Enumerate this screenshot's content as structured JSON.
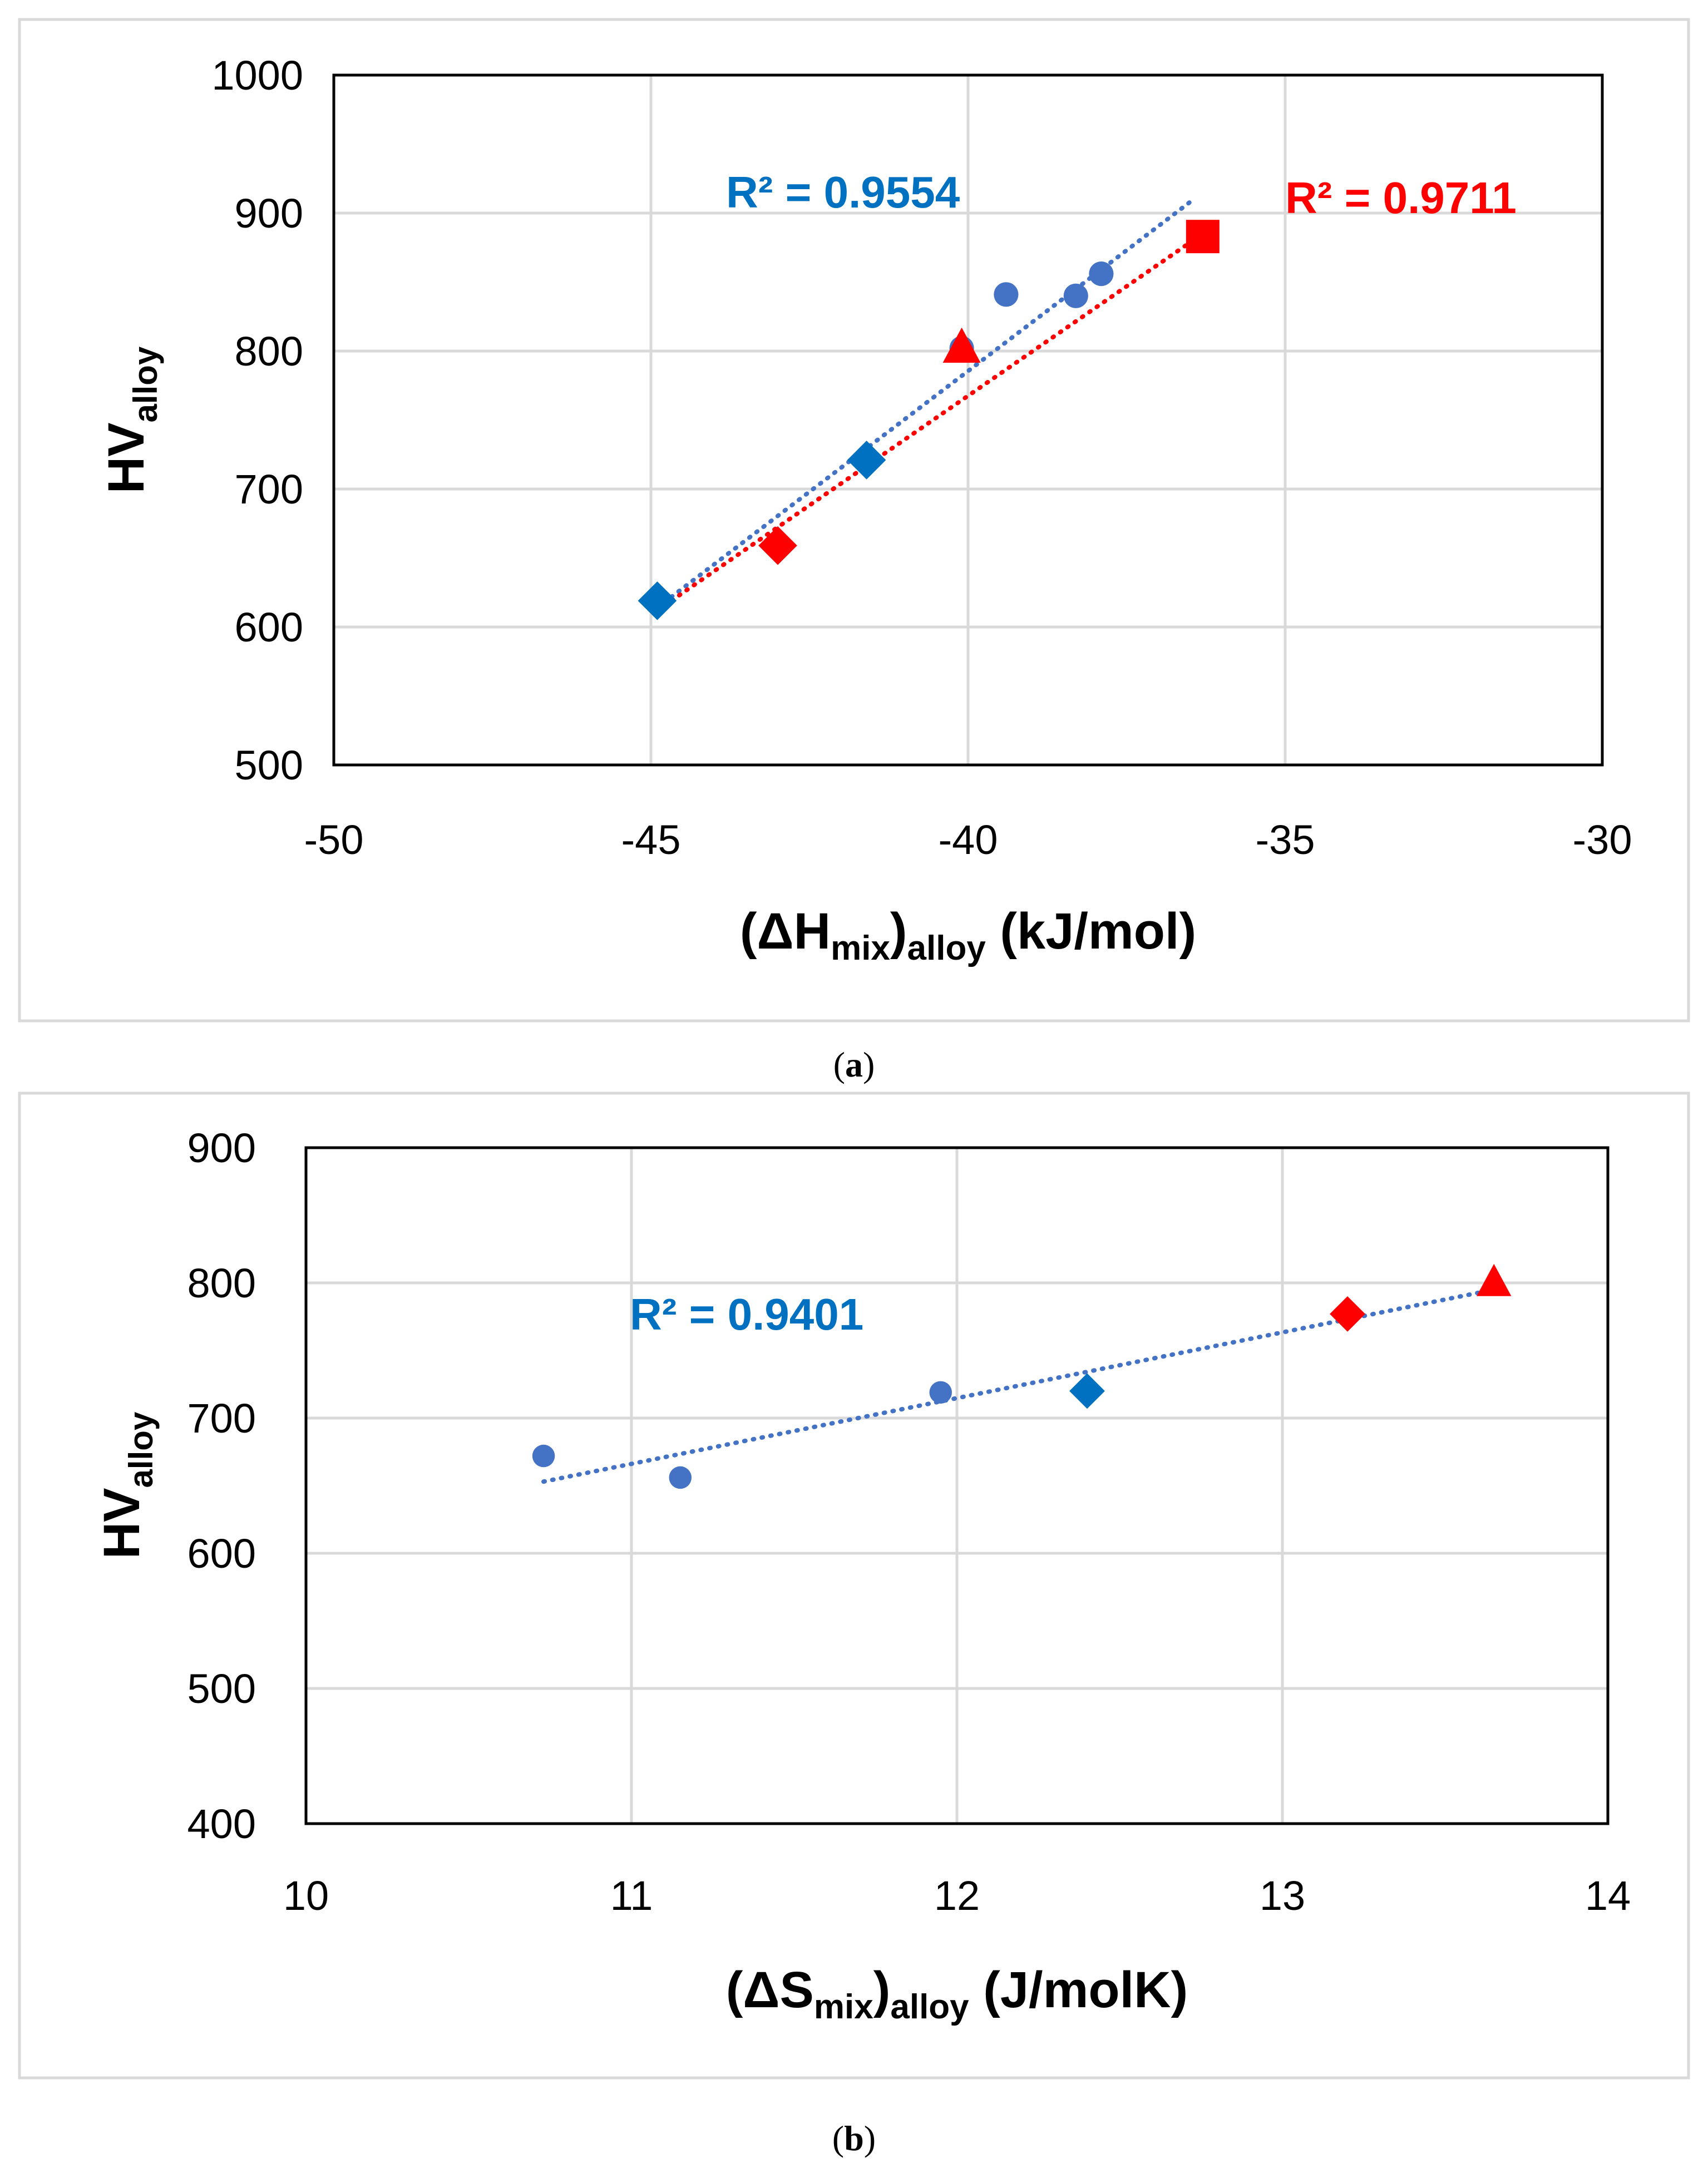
{
  "colors": {
    "blue_series": "#4472C4",
    "blue_marker": "#0070C0",
    "red": "#FF0000",
    "grid": "#D9D9D9",
    "frame": "#D9D9D9"
  },
  "chart_data": [
    {
      "id": "a",
      "type": "scatter",
      "caption": {
        "open": "(",
        "letter": "a",
        "close": ")"
      },
      "title": "",
      "xlabel": {
        "open": "(ΔH",
        "sub1": "mix",
        "mid": ")",
        "sub2": "alloy",
        "tail": " (kJ/mol)"
      },
      "ylabel": {
        "main": "HV",
        "sub": "alloy"
      },
      "xlim": [
        -50,
        -30
      ],
      "ylim": [
        500,
        1000
      ],
      "xticks": [
        -50,
        -45,
        -40,
        -35,
        -30
      ],
      "yticks": [
        500,
        600,
        700,
        800,
        900,
        1000
      ],
      "xtick_labels": [
        "-50",
        "-45",
        "-40",
        "-35",
        "-30"
      ],
      "ytick_labels": [
        "500",
        "600",
        "700",
        "800",
        "900",
        "1000"
      ],
      "series": [
        {
          "name": "blue circles",
          "marker": "circle",
          "color": "#4472C4",
          "points": [
            [
              -40.1,
              802
            ],
            [
              -39.4,
              841
            ],
            [
              -38.3,
              840
            ],
            [
              -37.9,
              856
            ]
          ]
        },
        {
          "name": "blue diamonds",
          "marker": "diamond",
          "color": "#0070C0",
          "points": [
            [
              -44.9,
              619
            ],
            [
              -41.6,
              721
            ]
          ]
        },
        {
          "name": "red diamond",
          "marker": "diamond",
          "color": "#FF0000",
          "points": [
            [
              -43.0,
              659
            ]
          ]
        },
        {
          "name": "red triangle",
          "marker": "triangle",
          "color": "#FF0000",
          "points": [
            [
              -40.1,
              802
            ]
          ]
        },
        {
          "name": "red square",
          "marker": "square",
          "color": "#FF0000",
          "points": [
            [
              -36.3,
              883
            ]
          ]
        }
      ],
      "trendlines": [
        {
          "color": "#4472C4",
          "x": [
            -44.9,
            -36.5
          ],
          "y": [
            614,
            908
          ],
          "r2_text": "R² = 0.9554"
        },
        {
          "color": "#FF0000",
          "x": [
            -44.9,
            -36.3
          ],
          "y": [
            612,
            885
          ],
          "r2_text": "R² = 0.9711"
        }
      ]
    },
    {
      "id": "b",
      "type": "scatter",
      "caption": {
        "open": "(",
        "letter": "b",
        "close": ")"
      },
      "title": "",
      "xlabel": {
        "open": "(ΔS",
        "sub1": "mix",
        "mid": ")",
        "sub2": "alloy",
        "tail": " (J/molK)"
      },
      "ylabel": {
        "main": "HV",
        "sub": "alloy"
      },
      "xlim": [
        10,
        14
      ],
      "ylim": [
        400,
        900
      ],
      "xticks": [
        10,
        11,
        12,
        13,
        14
      ],
      "yticks": [
        400,
        500,
        600,
        700,
        800,
        900
      ],
      "xtick_labels": [
        "10",
        "11",
        "12",
        "13",
        "14"
      ],
      "ytick_labels": [
        "400",
        "500",
        "600",
        "700",
        "800",
        "900"
      ],
      "series": [
        {
          "name": "blue circles",
          "marker": "circle",
          "color": "#4472C4",
          "points": [
            [
              10.73,
              672
            ],
            [
              11.15,
              656
            ],
            [
              11.95,
              719
            ]
          ]
        },
        {
          "name": "blue diamond",
          "marker": "diamond",
          "color": "#0070C0",
          "points": [
            [
              12.4,
              720
            ]
          ]
        },
        {
          "name": "red diamond",
          "marker": "diamond",
          "color": "#FF0000",
          "points": [
            [
              13.2,
              777
            ]
          ]
        },
        {
          "name": "red triangle",
          "marker": "triangle",
          "color": "#FF0000",
          "points": [
            [
              13.65,
              800
            ]
          ]
        }
      ],
      "trendlines": [
        {
          "color": "#4472C4",
          "x": [
            10.73,
            13.65
          ],
          "y": [
            653,
            795
          ],
          "r2_text": "R² = 0.9401"
        }
      ]
    }
  ]
}
